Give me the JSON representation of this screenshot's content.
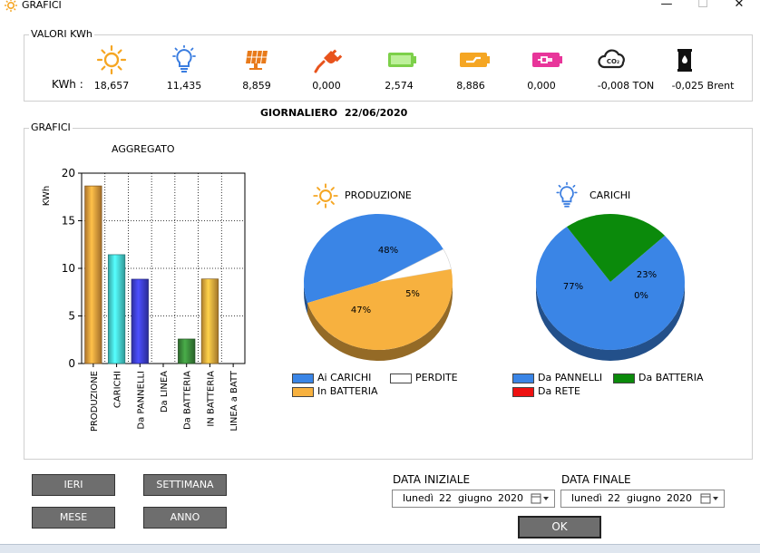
{
  "window": {
    "title": "GRAFICI",
    "minimize": "—",
    "maximize": "☐",
    "close": "✕"
  },
  "valori": {
    "group_title": "VALORI KWh",
    "row_label": "KWh :",
    "items": [
      {
        "icon": "sun-icon",
        "value": "18,657",
        "color": "#f5a623"
      },
      {
        "icon": "lightbulb-icon",
        "value": "11,435",
        "color": "#3a7de0"
      },
      {
        "icon": "solar-panel-icon",
        "value": "8,859",
        "color": "#e87a1a"
      },
      {
        "icon": "power-plug-icon",
        "value": "0,000",
        "color": "#e8531c"
      },
      {
        "icon": "battery-charging-icon",
        "value": "2,574",
        "color": "#7dd04a"
      },
      {
        "icon": "battery-to-load-icon",
        "value": "8,886",
        "color": "#f5a623"
      },
      {
        "icon": "battery-to-grid-icon",
        "value": "0,000",
        "color": "#e8359a"
      },
      {
        "icon": "co2-cloud-icon",
        "value": "-0,008 TON",
        "color": "#222222"
      },
      {
        "icon": "oil-barrel-icon",
        "value": "-0,025 Brent",
        "color": "#111111"
      }
    ]
  },
  "period": {
    "label": "GIORNALIERO",
    "date": "22/06/2020"
  },
  "grafici": {
    "group_title": "GRAFICI"
  },
  "chart_data": [
    {
      "type": "bar",
      "title": "AGGREGATO",
      "ylabel": "KWh",
      "ylim": [
        0,
        20
      ],
      "yticks": [
        0,
        5,
        10,
        15,
        20
      ],
      "grid": true,
      "categories": [
        "PRODUZIONE",
        "CARICHI",
        "Da PANNELLI",
        "Da LINEA",
        "Da BATTERIA",
        "IN BATTERIA",
        "LINEA a BATT"
      ],
      "values": [
        18.657,
        11.435,
        8.859,
        0,
        2.574,
        8.886,
        0
      ],
      "colors": [
        "#e59a3a",
        "#45d9d6",
        "#3d3fd6",
        "#888888",
        "#3a8a3a",
        "#e9a93c",
        "#888888"
      ]
    },
    {
      "type": "pie",
      "title": "PRODUZIONE",
      "labels": [
        "Ai CARICHI",
        "PERDITE",
        "In BATTERIA"
      ],
      "values": [
        47,
        5,
        48
      ],
      "display": [
        "47%",
        "5%",
        "48%"
      ],
      "colors": [
        "#3a85e6",
        "#ffffff",
        "#f7b13f"
      ]
    },
    {
      "type": "pie",
      "title": "CARICHI",
      "labels": [
        "Da PANNELLI",
        "Da BATTERIA",
        "Da RETE"
      ],
      "values": [
        77,
        23,
        0
      ],
      "display": [
        "77%",
        "23%",
        "0%"
      ],
      "colors": [
        "#3a85e6",
        "#0b8a0b",
        "#ee1111"
      ]
    }
  ],
  "buttons": {
    "ieri": "IERI",
    "settimana": "SETTIMANA",
    "mese": "MESE",
    "anno": "ANNO",
    "ok": "OK"
  },
  "date_start": {
    "label": "DATA INIZIALE",
    "weekday": "lunedì",
    "day": "22",
    "month": "giugno",
    "year": "2020"
  },
  "date_end": {
    "label": "DATA FINALE",
    "weekday": "lunedì",
    "day": "22",
    "month": "giugno",
    "year": "2020"
  }
}
